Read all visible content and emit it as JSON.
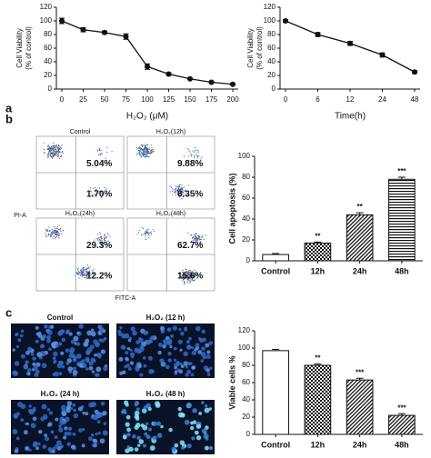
{
  "panel_labels": [
    "a",
    "b",
    "c"
  ],
  "chart_data": [
    {
      "type": "line",
      "x": [
        0,
        25,
        50,
        75,
        100,
        125,
        150,
        175,
        200
      ],
      "values": [
        100,
        87,
        83,
        77,
        33,
        22,
        15,
        10,
        7
      ],
      "errors": [
        4,
        3,
        2,
        4,
        4,
        2,
        1,
        1,
        1
      ],
      "xlim": [
        0,
        200
      ],
      "xticks": [
        0,
        25,
        50,
        75,
        100,
        125,
        150,
        175,
        200
      ],
      "ylim": [
        0,
        120
      ],
      "yticks": [
        0,
        20,
        40,
        60,
        80,
        100,
        120
      ],
      "x_label": "H₂O₂ (μM)",
      "y_label": [
        "Cell Viability",
        "(% of control)"
      ],
      "color": "#111111"
    },
    {
      "type": "line",
      "categories": [
        "0",
        "6",
        "12",
        "24",
        "48"
      ],
      "values": [
        100,
        80,
        67,
        50,
        25
      ],
      "errors": [
        2,
        3,
        3,
        3,
        2
      ],
      "ylim": [
        0,
        120
      ],
      "yticks": [
        0,
        20,
        40,
        60,
        80,
        100,
        120
      ],
      "x_label": "Time(h)",
      "y_label": [
        "Cell Viability",
        "(% of control)"
      ],
      "color": "#111111"
    },
    {
      "type": "bar",
      "categories": [
        "Control",
        "12h",
        "24h",
        "48h"
      ],
      "values": [
        6,
        17,
        44,
        78
      ],
      "errors": [
        1,
        1,
        2,
        2
      ],
      "significance": [
        null,
        "**",
        "**",
        "***"
      ],
      "patterns": [
        "solid",
        "checker",
        "diagonal",
        "horizontal"
      ],
      "ylim": [
        0,
        100
      ],
      "yticks": [
        0,
        20,
        40,
        60,
        80,
        100
      ],
      "y_label": "Cell apoptosis (%)"
    },
    {
      "type": "bar",
      "categories": [
        "Control",
        "12h",
        "24h",
        "48h"
      ],
      "values": [
        97,
        80,
        63,
        22
      ],
      "errors": [
        1.5,
        1.5,
        2,
        2
      ],
      "significance": [
        null,
        "**",
        "***",
        "***"
      ],
      "patterns": [
        "solid",
        "checker",
        "diagonal",
        "diagonal"
      ],
      "ylim": [
        0,
        120
      ],
      "yticks": [
        0,
        20,
        40,
        60,
        80,
        100,
        120
      ],
      "y_label": "Viable cells %"
    }
  ],
  "flow_cytometry": {
    "y_label": "PI-A",
    "x_label": "FITC-A",
    "plots": [
      {
        "title": "Control",
        "upper_right": "5.04%",
        "lower_right": "1.70%"
      },
      {
        "title": "H₂O₂(12h)",
        "upper_right": "9.88%",
        "lower_right": "6.35%"
      },
      {
        "title": "H₂O₂(24h)",
        "upper_right": "29.3%",
        "lower_right": "12.2%"
      },
      {
        "title": "H₂O₂(48h)",
        "upper_right": "62.7%",
        "lower_right": "15.6%"
      }
    ]
  },
  "microscopy": {
    "images": [
      {
        "title": "Control"
      },
      {
        "title": "H₂O₂ (12 h)"
      },
      {
        "title": "H₂O₂ (24 h)"
      },
      {
        "title": "H₂O₂ (48 h)"
      }
    ]
  }
}
